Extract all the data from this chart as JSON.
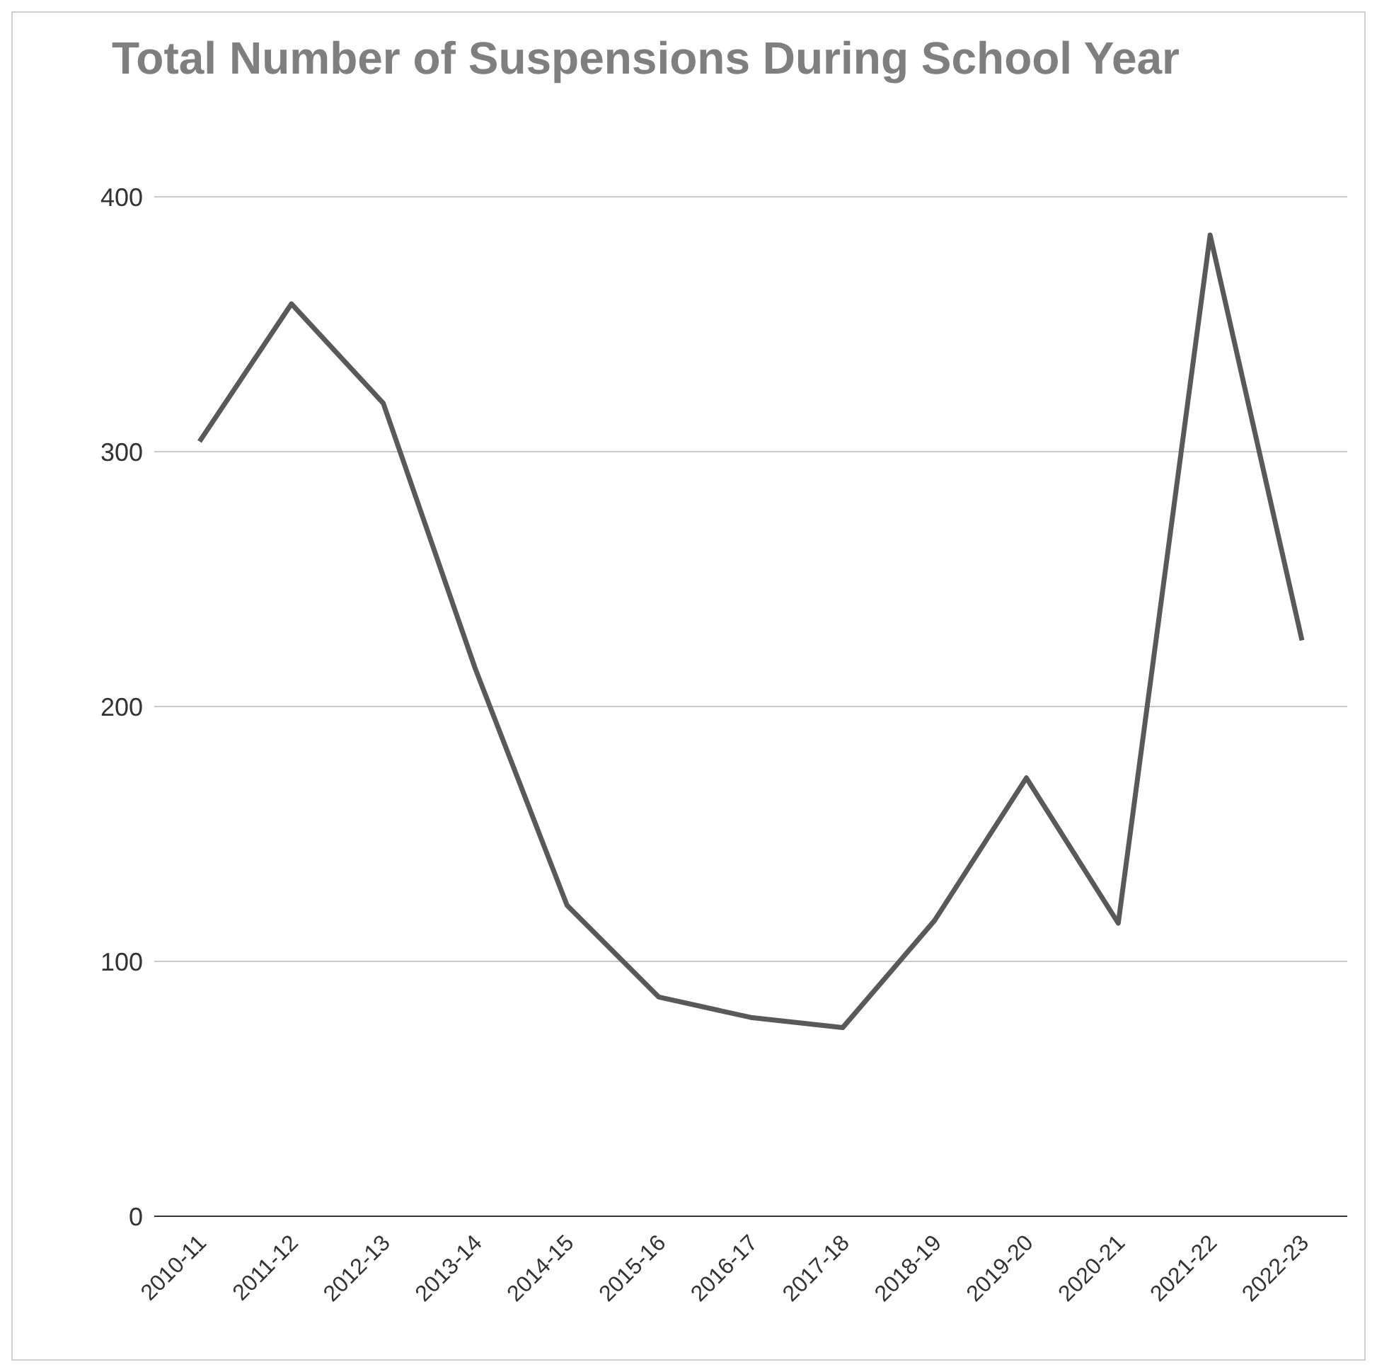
{
  "chart_data": {
    "type": "line",
    "title": "Total Number of Suspensions During School Year",
    "categories": [
      "2010-11",
      "2011-12",
      "2012-13",
      "2013-14",
      "2014-15",
      "2015-16",
      "2016-17",
      "2017-18",
      "2018-19",
      "2019-20",
      "2020-21",
      "2021-22",
      "2022-23"
    ],
    "series": [
      {
        "color": "#595959",
        "values": [
          304,
          358,
          319,
          215,
          122,
          86,
          78,
          74,
          116,
          172,
          115,
          385,
          226
        ]
      }
    ],
    "ylim": [
      0,
      400
    ],
    "yticks": [
      0,
      100,
      200,
      300,
      400
    ],
    "grid": "y",
    "marker": "none"
  }
}
